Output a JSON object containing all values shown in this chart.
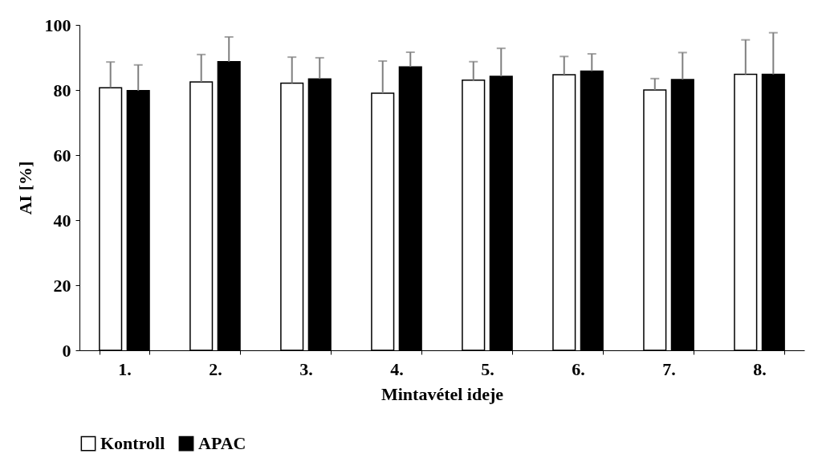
{
  "chart_data": {
    "type": "bar",
    "xlabel": "Mintavétel ideje",
    "ylabel": "AI [%]",
    "categories": [
      "1.",
      "2.",
      "3.",
      "4.",
      "5.",
      "6.",
      "7.",
      "8."
    ],
    "series": [
      {
        "name": "Kontroll",
        "color": "#ffffff",
        "values": [
          80.7,
          82.5,
          82.1,
          79.0,
          83.0,
          84.7,
          80.0,
          84.8
        ],
        "errors": [
          [
            80.7,
            88.6
          ],
          [
            82.5,
            90.9
          ],
          [
            82.1,
            90.1
          ],
          [
            79.0,
            88.9
          ],
          [
            83.0,
            88.7
          ],
          [
            84.7,
            90.3
          ],
          [
            80.0,
            83.5
          ],
          [
            84.8,
            95.4
          ]
        ]
      },
      {
        "name": "APAC",
        "color": "#000000",
        "values": [
          79.8,
          88.7,
          83.4,
          87.1,
          84.2,
          85.8,
          83.2,
          84.8
        ],
        "errors": [
          [
            79.8,
            87.7
          ],
          [
            88.7,
            96.3
          ],
          [
            83.4,
            89.9
          ],
          [
            87.1,
            91.6
          ],
          [
            84.2,
            92.8
          ],
          [
            85.8,
            91.1
          ],
          [
            83.2,
            91.5
          ],
          [
            84.8,
            97.6
          ]
        ]
      }
    ],
    "ylim": [
      0,
      100
    ],
    "yticks": [
      0,
      20,
      40,
      60,
      80,
      100
    ],
    "grid": false,
    "legend": "bottom"
  }
}
